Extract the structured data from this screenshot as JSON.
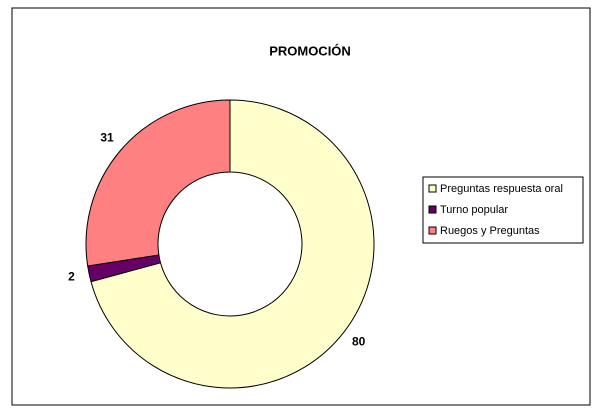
{
  "chart_data": {
    "type": "donut",
    "title": "PROMOCIÓN",
    "categories": [
      "Preguntas respuesta oral",
      "Turno popular",
      "Ruegos y Preguntas"
    ],
    "values": [
      80,
      2,
      31
    ],
    "colors": [
      "#FFFFCC",
      "#660066",
      "#FF8080"
    ],
    "legend": "right"
  }
}
